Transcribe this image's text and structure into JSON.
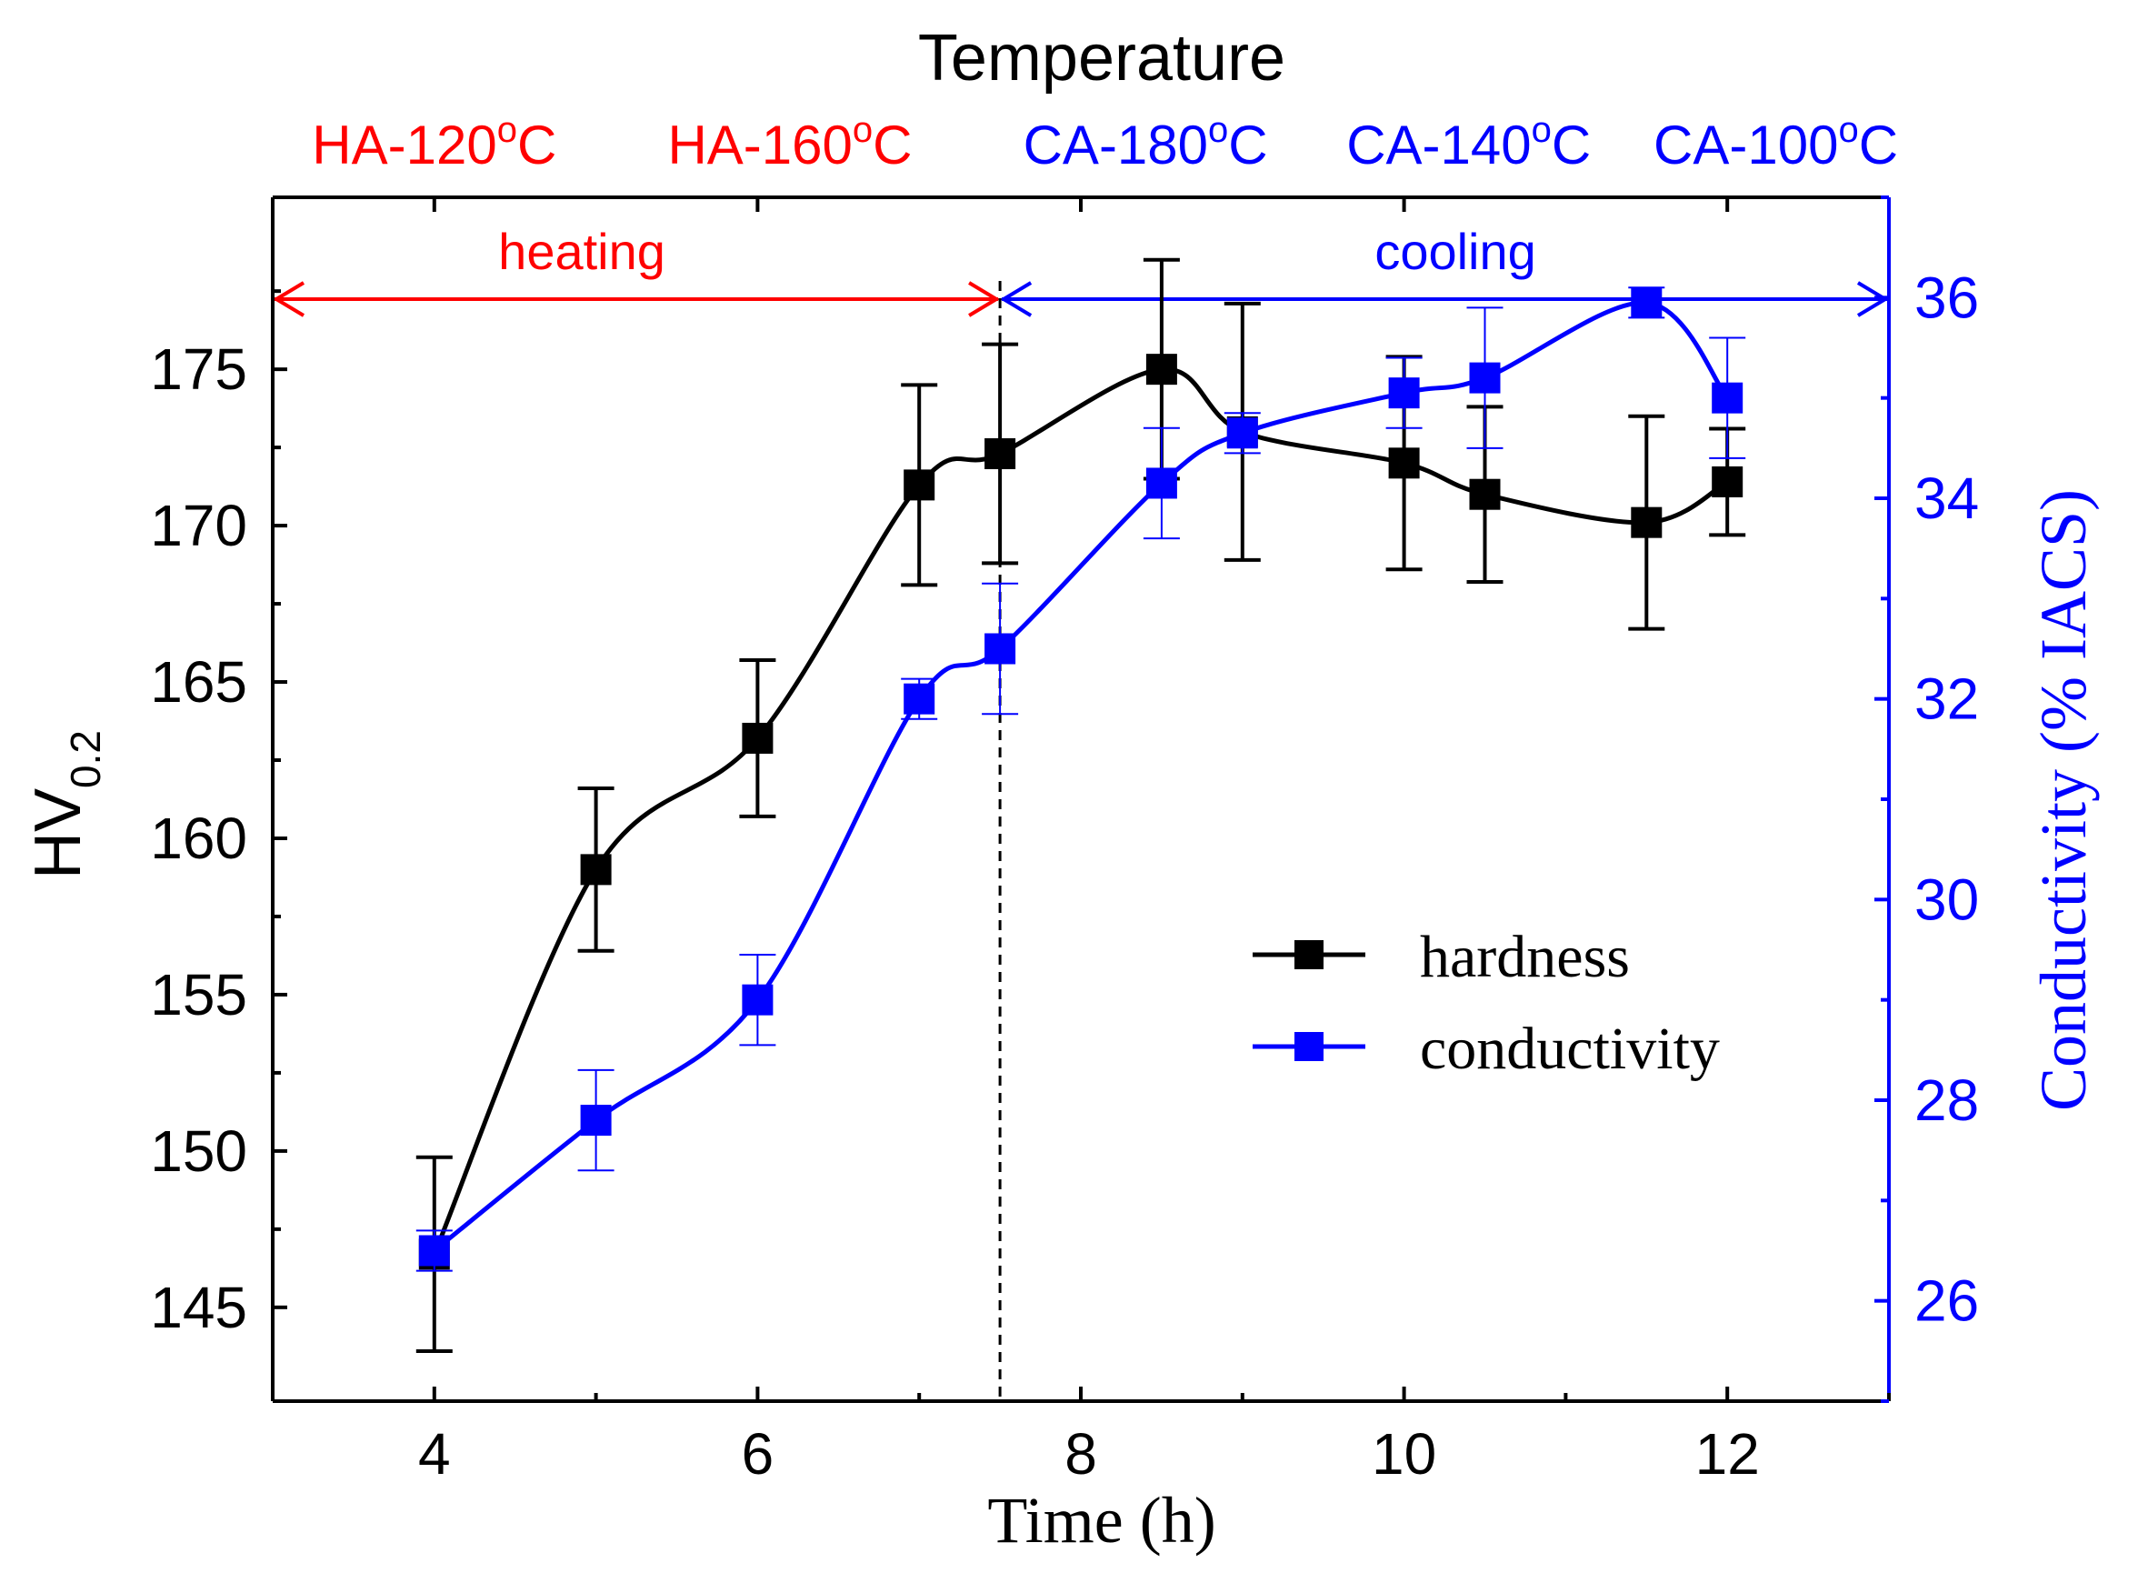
{
  "chart_data": {
    "type": "line",
    "title": "Temperature",
    "xlabel": "Time (h)",
    "ylabel_main": "HV",
    "ylabel_sub": "0.2",
    "y2label": "Conductivity (% IACS)",
    "xlim": [
      3,
      13
    ],
    "ylim": [
      142.0,
      180.5
    ],
    "y2lim": [
      25.0,
      37.0
    ],
    "x_ticks": [
      "4",
      "6",
      "8",
      "10",
      "12"
    ],
    "y_ticks": [
      "145",
      "150",
      "155",
      "160",
      "165",
      "170",
      "175"
    ],
    "y2_ticks": [
      "26",
      "28",
      "30",
      "32",
      "34",
      "36"
    ],
    "temperature_labels": [
      {
        "main": "HA-120",
        "sup": "o",
        "unit": "C",
        "color": "#ff0000",
        "x": 4.0
      },
      {
        "main": "HA-160",
        "sup": "o",
        "unit": "C",
        "color": "#ff0000",
        "x": 6.2
      },
      {
        "main": "CA-180",
        "sup": "o",
        "unit": "C",
        "color": "#0000ff",
        "x": 8.4
      },
      {
        "main": "CA-140",
        "sup": "o",
        "unit": "C",
        "color": "#0000ff",
        "x": 10.4
      },
      {
        "main": "CA-100",
        "sup": "o",
        "unit": "C",
        "color": "#0000ff",
        "x": 12.3
      }
    ],
    "phases": [
      {
        "label": "heating",
        "from": 3,
        "to": 7.5,
        "color": "#ff0000"
      },
      {
        "label": "cooling",
        "from": 7.5,
        "to": 13,
        "color": "#0000ff"
      }
    ],
    "divider_x": 7.5,
    "series": [
      {
        "name": "hardness",
        "axis": "left",
        "color": "#000000",
        "x": [
          4,
          5,
          6,
          7,
          7.5,
          8.5,
          9,
          10,
          10.5,
          11.5,
          12
        ],
        "y": [
          146.7,
          159.0,
          163.2,
          171.3,
          172.3,
          175.0,
          173.0,
          172.0,
          171.0,
          170.1,
          171.4
        ],
        "err": [
          3.1,
          2.6,
          2.5,
          3.2,
          3.5,
          3.5,
          4.1,
          3.4,
          2.8,
          3.4,
          1.7
        ]
      },
      {
        "name": "conductivity",
        "axis": "right",
        "color": "#0000ff",
        "x": [
          4,
          5,
          6,
          7,
          7.5,
          8.5,
          9,
          10,
          10.5,
          11.5,
          12
        ],
        "y": [
          26.5,
          27.8,
          29.0,
          32.0,
          32.5,
          34.15,
          34.65,
          35.05,
          35.2,
          35.95,
          35.0
        ],
        "err": [
          0.2,
          0.5,
          0.45,
          0.2,
          0.65,
          0.55,
          0.2,
          0.35,
          0.7,
          0.15,
          0.6
        ]
      }
    ],
    "legend": [
      "hardness",
      "conductivity"
    ],
    "legend_position": "center-right"
  }
}
